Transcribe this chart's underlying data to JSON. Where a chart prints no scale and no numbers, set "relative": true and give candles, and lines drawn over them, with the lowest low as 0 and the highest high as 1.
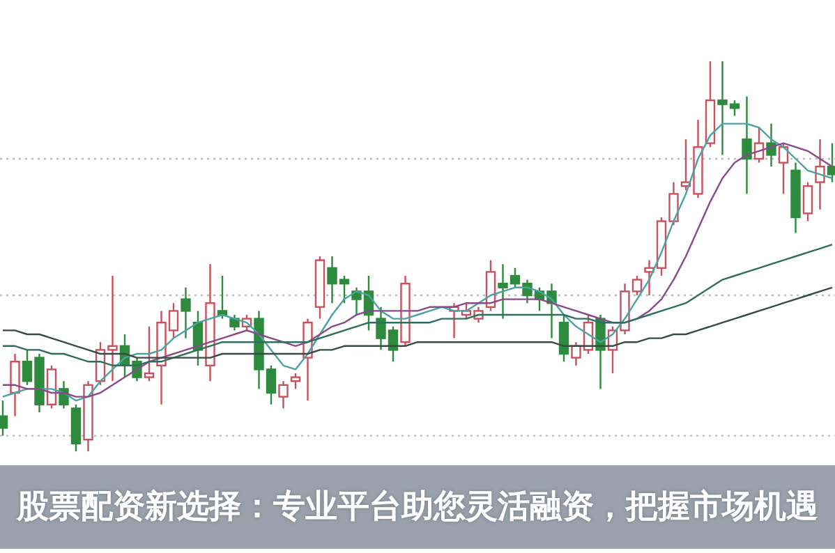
{
  "chart_data": {
    "type": "candlestick",
    "title": "股票配资新选择：专业平台助您灵活融资，把握市场机遇",
    "relative": true,
    "categories": [
      null,
      null,
      null,
      null,
      null,
      null,
      null,
      null,
      null,
      null,
      null,
      null,
      null,
      null,
      null,
      null,
      null,
      null,
      null,
      null,
      null,
      null,
      null,
      null,
      null,
      null,
      null,
      null,
      null,
      null,
      null,
      null,
      null,
      null,
      null,
      null,
      null,
      null,
      null,
      null,
      null,
      null,
      null,
      null,
      null,
      null,
      null,
      null,
      null,
      null,
      null,
      null,
      null,
      null,
      null,
      null,
      null,
      null,
      null,
      null,
      null,
      null,
      null,
      null,
      null,
      null,
      null,
      null,
      null
    ],
    "colors": [
      "#2e8b3e",
      "#c8525e",
      "#2e8b3e",
      "#2e8b3e",
      "#c8525e",
      "#2e8b3e",
      "#2e8b3e",
      "#c8525e",
      "#c8525e",
      "#c8525e",
      "#2e8b3e",
      "#2e8b3e",
      "#c8525e",
      "#c8525e",
      "#c8525e",
      "#2e8b3e",
      "#2e8b3e",
      "#c8525e",
      "#2e8b3e",
      "#2e8b3e",
      "#c8525e",
      "#2e8b3e",
      "#2e8b3e",
      "#c8525e",
      "#c8525e",
      "#c8525e",
      "#c8525e",
      "#2e8b3e",
      "#2e8b3e",
      "#2e8b3e",
      "#2e8b3e",
      "#2e8b3e",
      "#2e8b3e",
      "#c8525e",
      null,
      null,
      null,
      "#c8525e",
      "#c8525e",
      "#c8525e",
      "#c8525e",
      "#2e8b3e",
      "#2e8b3e",
      "#2e8b3e",
      "#2e8b3e",
      "#2e8b3e",
      "#2e8b3e",
      "#c8525e",
      "#c8525e",
      "#2e8b3e",
      "#c8525e",
      "#c8525e",
      "#c8525e",
      "#c8525e",
      "#c8525e",
      "#c8525e",
      "#c8525e",
      "#c8525e",
      "#c8525e",
      "#2e8b3e",
      "#2e8b3e",
      "#2e8b3e",
      "#c8525e",
      "#2e8b3e",
      "#c8525e",
      "#2e8b3e",
      "#c8525e",
      "#c8525e",
      "#2e8b3e"
    ],
    "ohlc": [
      [
        0.09,
        0.13,
        0.04,
        0.06
      ],
      [
        0.15,
        0.25,
        0.09,
        0.23
      ],
      [
        0.23,
        0.26,
        0.17,
        0.18
      ],
      [
        0.24,
        0.25,
        0.1,
        0.12
      ],
      [
        0.12,
        0.22,
        0.11,
        0.21
      ],
      [
        0.16,
        0.18,
        0.11,
        0.12
      ],
      [
        0.11,
        0.12,
        0.0,
        0.02
      ],
      [
        0.03,
        0.18,
        0.0,
        0.17
      ],
      [
        0.18,
        0.28,
        0.17,
        0.26
      ],
      [
        0.26,
        0.45,
        0.18,
        0.27
      ],
      [
        0.27,
        0.3,
        0.19,
        0.22
      ],
      [
        0.23,
        0.24,
        0.18,
        0.19
      ],
      [
        0.19,
        0.32,
        0.18,
        0.2
      ],
      [
        0.22,
        0.36,
        0.12,
        0.33
      ],
      [
        0.31,
        0.38,
        0.29,
        0.36
      ],
      [
        0.39,
        0.42,
        0.29,
        0.36
      ],
      [
        0.33,
        0.36,
        0.22,
        0.26
      ],
      [
        0.22,
        0.48,
        0.18,
        0.38
      ],
      [
        0.36,
        0.45,
        0.34,
        0.35
      ],
      [
        0.34,
        0.35,
        0.31,
        0.32
      ],
      [
        0.32,
        0.35,
        0.31,
        0.34
      ],
      [
        0.34,
        0.36,
        0.16,
        0.21
      ],
      [
        0.21,
        0.22,
        0.12,
        0.15
      ],
      [
        0.14,
        0.18,
        0.11,
        0.17
      ],
      [
        0.18,
        0.2,
        0.16,
        0.19
      ],
      [
        0.24,
        0.34,
        0.13,
        0.33
      ],
      [
        0.37,
        0.5,
        0.34,
        0.49
      ],
      [
        0.47,
        0.5,
        0.38,
        0.43
      ],
      [
        0.44,
        0.45,
        0.38,
        0.43
      ],
      [
        0.41,
        0.42,
        0.35,
        0.39
      ],
      [
        0.41,
        0.45,
        0.31,
        0.35
      ],
      [
        0.34,
        0.37,
        0.26,
        0.29
      ],
      [
        0.31,
        0.32,
        0.23,
        0.26
      ],
      [
        0.28,
        0.45,
        0.27,
        0.43
      ],
      null,
      null,
      null,
      [
        0.36,
        0.38,
        0.29,
        0.37
      ],
      [
        0.35,
        0.38,
        0.34,
        0.36
      ],
      [
        0.34,
        0.37,
        0.33,
        0.36
      ],
      [
        0.37,
        0.49,
        0.36,
        0.46
      ],
      [
        0.43,
        0.48,
        0.34,
        0.42
      ],
      [
        0.45,
        0.47,
        0.42,
        0.43
      ],
      [
        0.43,
        0.44,
        0.38,
        0.4
      ],
      [
        0.41,
        0.42,
        0.36,
        0.39
      ],
      [
        0.41,
        0.43,
        0.29,
        0.38
      ],
      [
        0.33,
        0.35,
        0.23,
        0.25
      ],
      [
        0.24,
        0.28,
        0.22,
        0.27
      ],
      [
        0.26,
        0.35,
        0.25,
        0.33
      ],
      [
        0.34,
        0.35,
        0.16,
        0.26
      ],
      [
        0.26,
        0.32,
        0.2,
        0.31
      ],
      [
        0.31,
        0.43,
        0.3,
        0.41
      ],
      [
        0.41,
        0.45,
        0.4,
        0.44
      ],
      [
        0.46,
        0.49,
        0.4,
        0.47
      ],
      [
        0.47,
        0.6,
        0.45,
        0.59
      ],
      [
        0.59,
        0.69,
        0.58,
        0.66
      ],
      [
        0.68,
        0.8,
        0.67,
        0.69
      ],
      [
        0.66,
        0.85,
        0.65,
        0.78
      ],
      [
        0.79,
        1,
        0.78,
        0.9
      ],
      [
        0.9,
        1,
        0.76,
        0.89
      ],
      [
        0.89,
        0.9,
        0.86,
        0.88
      ],
      [
        0.8,
        0.91,
        0.66,
        0.75
      ],
      [
        0.75,
        0.83,
        0.74,
        0.79
      ],
      [
        0.79,
        0.84,
        0.73,
        0.76
      ],
      [
        0.74,
        0.79,
        0.66,
        0.78
      ],
      [
        0.72,
        0.74,
        0.56,
        0.6
      ],
      [
        0.61,
        0.69,
        0.59,
        0.68
      ],
      [
        0.69,
        0.8,
        0.62,
        0.73
      ],
      [
        0.73,
        0.79,
        0.69,
        0.71
      ]
    ],
    "series": [
      {
        "type": "line",
        "color": "#4aa3a0",
        "values": [
          0.14,
          0.15,
          0.16,
          0.16,
          0.16,
          0.15,
          0.13,
          0.14,
          0.18,
          0.21,
          0.24,
          0.25,
          0.25,
          0.26,
          0.29,
          0.31,
          0.33,
          0.34,
          0.35,
          0.34,
          0.33,
          0.3,
          0.26,
          0.22,
          0.21,
          0.25,
          0.3,
          0.35,
          0.39,
          0.41,
          0.4,
          0.36,
          0.34,
          0.34,
          0.35,
          0.36,
          0.37,
          0.36,
          0.36,
          0.38,
          0.4,
          0.41,
          0.42,
          0.42,
          0.41,
          0.39,
          0.35,
          0.32,
          0.3,
          0.28,
          0.3,
          0.34,
          0.39,
          0.44,
          0.51,
          0.59,
          0.66,
          0.75,
          0.81,
          0.84,
          0.84,
          0.84,
          0.83,
          0.8,
          0.78,
          0.75,
          0.72,
          0.71,
          0.7
        ]
      },
      {
        "type": "line",
        "color": "#8a4a8a",
        "values": [
          0.17,
          0.17,
          0.16,
          0.16,
          0.15,
          0.15,
          0.14,
          0.14,
          0.15,
          0.17,
          0.19,
          0.21,
          0.23,
          0.24,
          0.25,
          0.26,
          0.27,
          0.28,
          0.29,
          0.3,
          0.31,
          0.3,
          0.29,
          0.28,
          0.27,
          0.28,
          0.3,
          0.32,
          0.33,
          0.35,
          0.36,
          0.36,
          0.36,
          0.36,
          0.36,
          0.37,
          0.37,
          0.37,
          0.38,
          0.38,
          0.38,
          0.39,
          0.39,
          0.39,
          0.39,
          0.38,
          0.37,
          0.36,
          0.35,
          0.34,
          0.33,
          0.33,
          0.34,
          0.36,
          0.39,
          0.44,
          0.5,
          0.57,
          0.64,
          0.7,
          0.74,
          0.76,
          0.77,
          0.78,
          0.79,
          0.78,
          0.77,
          0.75,
          0.73
        ]
      },
      {
        "type": "line",
        "color": "#2f6f5f",
        "values": [
          0.27,
          0.27,
          0.26,
          0.26,
          0.25,
          0.25,
          0.24,
          0.23,
          0.23,
          0.22,
          0.22,
          0.22,
          0.23,
          0.23,
          0.24,
          0.25,
          0.26,
          0.27,
          0.28,
          0.28,
          0.28,
          0.28,
          0.28,
          0.28,
          0.28,
          0.28,
          0.29,
          0.3,
          0.31,
          0.32,
          0.33,
          0.33,
          0.33,
          0.33,
          0.33,
          0.33,
          0.34,
          0.34,
          0.34,
          0.35,
          0.35,
          0.35,
          0.35,
          0.35,
          0.35,
          0.35,
          0.35,
          0.34,
          0.34,
          0.33,
          0.33,
          0.33,
          0.34,
          0.35,
          0.36,
          0.37,
          0.38,
          0.4,
          0.42,
          0.44,
          0.45,
          0.46,
          0.47,
          0.48,
          0.49,
          0.5,
          0.51,
          0.52,
          0.53
        ]
      },
      {
        "type": "line",
        "color": "#3a4a48",
        "values": [
          0.31,
          0.31,
          0.3,
          0.3,
          0.29,
          0.28,
          0.27,
          0.26,
          0.25,
          0.25,
          0.25,
          0.24,
          0.24,
          0.24,
          0.24,
          0.24,
          0.24,
          0.24,
          0.25,
          0.25,
          0.25,
          0.25,
          0.25,
          0.25,
          0.25,
          0.25,
          0.26,
          0.26,
          0.27,
          0.27,
          0.27,
          0.27,
          0.27,
          0.27,
          0.28,
          0.28,
          0.28,
          0.28,
          0.28,
          0.28,
          0.28,
          0.28,
          0.28,
          0.28,
          0.28,
          0.28,
          0.27,
          0.27,
          0.27,
          0.27,
          0.27,
          0.28,
          0.28,
          0.29,
          0.29,
          0.3,
          0.3,
          0.31,
          0.32,
          0.33,
          0.34,
          0.35,
          0.36,
          0.37,
          0.38,
          0.39,
          0.4,
          0.41,
          0.42
        ]
      }
    ],
    "ref_lines": [
      {
        "axis": "y",
        "value": 0.75,
        "color": "#bbbbbb",
        "line_style": "dotted"
      },
      {
        "axis": "y",
        "value": 0.4,
        "color": "#bbbbbb",
        "line_style": "dotted"
      },
      {
        "axis": "y",
        "value": 0.04,
        "color": "#bbbbbb",
        "line_style": "dotted"
      }
    ],
    "line_style": "solid"
  }
}
